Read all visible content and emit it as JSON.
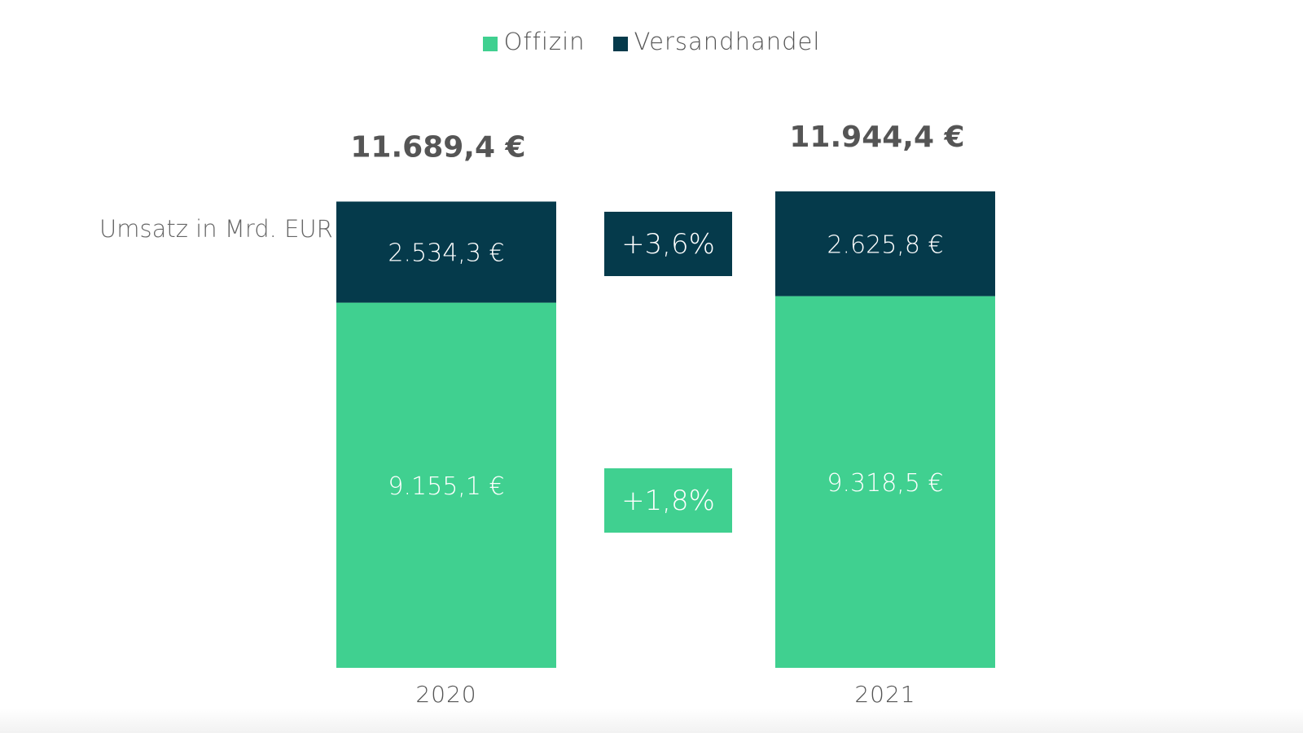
{
  "legend": {
    "items": [
      {
        "label": "Offizin",
        "color": "#40d090"
      },
      {
        "label": "Versandhandel",
        "color": "#053a4b"
      }
    ]
  },
  "chart_data": {
    "type": "bar",
    "stacked": true,
    "categories": [
      "2020",
      "2021"
    ],
    "series": [
      {
        "name": "Offizin",
        "color": "#40d090",
        "values": [
          9155.1,
          9318.5
        ],
        "labels": [
          "9.155,1 €",
          "9.318,5 €"
        ]
      },
      {
        "name": "Versandhandel",
        "color": "#053a4b",
        "values": [
          2534.3,
          2625.8
        ],
        "labels": [
          "2.534,3 €",
          "2.625,8 €"
        ]
      }
    ],
    "totals": [
      "11.689,4 €",
      "11.944,4 €"
    ],
    "growth": [
      {
        "series": "Versandhandel",
        "label": "+3,6%"
      },
      {
        "series": "Offizin",
        "label": "+1,8%"
      }
    ],
    "ylabel": "Umsatz in Mrd. EUR",
    "title": "",
    "xlabel": "",
    "legend_position": "top-center",
    "grid": false
  }
}
